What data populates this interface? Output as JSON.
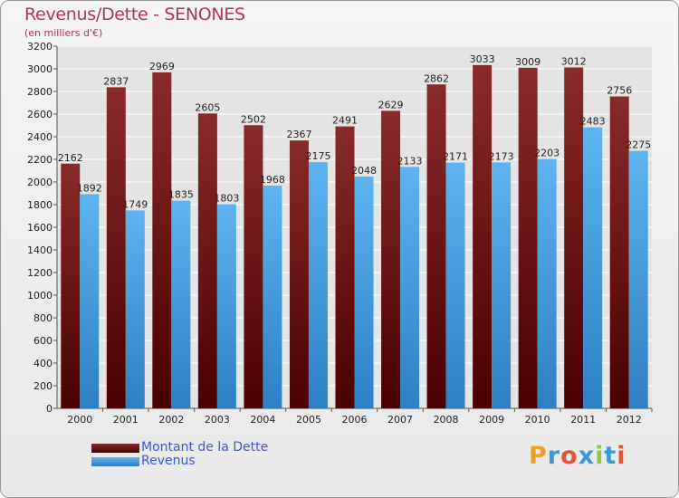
{
  "header": {
    "title": "Revenus/Dette - SENONES",
    "subtitle": "(en milliers d'€)"
  },
  "legend": {
    "items": [
      {
        "label": "Montant de la Dette",
        "color": "#6b0a0a"
      },
      {
        "label": "Revenus",
        "color": "#4aa3e8"
      }
    ]
  },
  "logo": {
    "text": "Proxiti",
    "letters": [
      "P",
      "r",
      "o",
      "x",
      "i",
      "t",
      "i"
    ],
    "colors": [
      "#f0a020",
      "#3a9ad9",
      "#e6542a",
      "#3a9ad9",
      "#8cc63f",
      "#3a9ad9",
      "#e6542a"
    ]
  },
  "chart_data": {
    "type": "bar",
    "title": "Revenus/Dette - SENONES",
    "subtitle": "(en milliers d'€)",
    "categories": [
      "2000",
      "2001",
      "2002",
      "2003",
      "2004",
      "2005",
      "2006",
      "2007",
      "2008",
      "2009",
      "2010",
      "2011",
      "2012"
    ],
    "series": [
      {
        "name": "Montant de la Dette",
        "color": "#7a1414",
        "values": [
          2162,
          2837,
          2969,
          2605,
          2502,
          2367,
          2491,
          2629,
          2862,
          3033,
          3009,
          3012,
          2756
        ]
      },
      {
        "name": "Revenus",
        "color": "#4aa3e8",
        "values": [
          1892,
          1749,
          1835,
          1803,
          1968,
          2175,
          2048,
          2133,
          2171,
          2173,
          2203,
          2483,
          2275
        ]
      }
    ],
    "ylim": [
      0,
      3200
    ],
    "yticks": [
      0,
      200,
      400,
      600,
      800,
      1000,
      1200,
      1400,
      1600,
      1800,
      2000,
      2200,
      2400,
      2600,
      2800,
      3000,
      3200
    ],
    "grid": true,
    "legend_position": "bottom-left"
  }
}
